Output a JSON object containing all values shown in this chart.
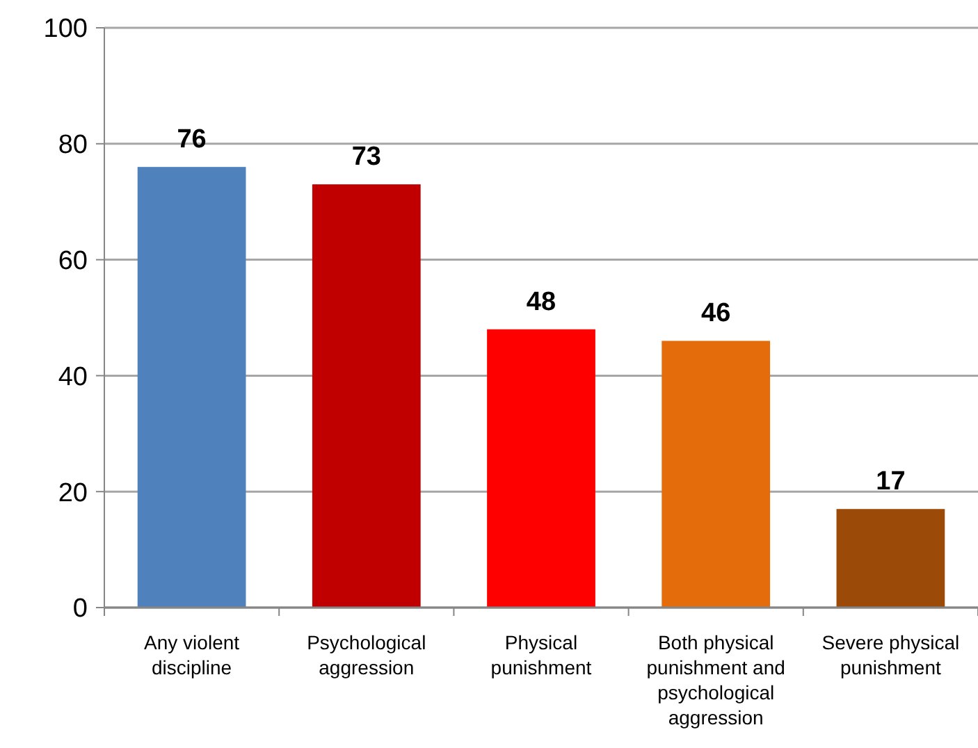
{
  "chart_data": {
    "type": "bar",
    "categories": [
      "Any violent discipline",
      "Psychological aggression",
      "Physical punishment",
      "Both physical punishment and psychological aggression",
      "Severe physical punishment"
    ],
    "values": [
      76,
      73,
      48,
      46,
      17
    ],
    "colors": [
      "#4f81bd",
      "#c00000",
      "#ff0000",
      "#e46c0a",
      "#9c4a08"
    ],
    "ylim": [
      0,
      100
    ],
    "yticks": [
      0,
      20,
      40,
      60,
      80,
      100
    ],
    "grid": "y",
    "data_labels": true
  }
}
